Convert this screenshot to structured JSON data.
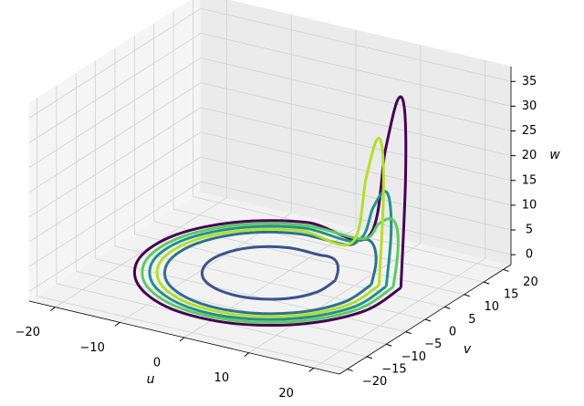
{
  "chart_data": {
    "type": "line3d",
    "xlabel": "u",
    "ylabel": "v",
    "zlabel": "w",
    "xlim": [
      -24,
      24
    ],
    "ylim": [
      -22,
      22
    ],
    "zlim": [
      -2,
      38
    ],
    "xticks": [
      {
        "value": -20,
        "label": "−20"
      },
      {
        "value": -10,
        "label": "−10"
      },
      0,
      10,
      20
    ],
    "yticks": [
      {
        "value": -20,
        "label": "−20"
      },
      {
        "value": -15,
        "label": "−15"
      },
      {
        "value": -10,
        "label": "−10"
      },
      {
        "value": -5,
        "label": "−5"
      },
      0,
      5,
      10,
      15,
      20
    ],
    "zticks": [
      0,
      5,
      10,
      15,
      20,
      25,
      30,
      35
    ],
    "grid": true,
    "series": [
      {
        "color": "#440154",
        "x": [
          17.4,
          17.4,
          12.7,
          4.7,
          -4.7,
          -12.7,
          -17.4,
          -17.4,
          -12.7,
          -4.7,
          4.7,
          8.2,
          11.3,
          14.0,
          16.0,
          17.4
        ],
        "y": [
          4.7,
          -4.7,
          -12.7,
          -17.4,
          -17.4,
          -12.7,
          -4.7,
          4.7,
          12.7,
          17.4,
          17.4,
          16.0,
          14.0,
          11.3,
          8.2,
          4.7
        ],
        "z": [
          0,
          0,
          0,
          0,
          0,
          0,
          0,
          0,
          0,
          0,
          0,
          19.4,
          31.4,
          31.4,
          19.4,
          0
        ]
      },
      {
        "color": "#3b528b",
        "x": [
          8.7,
          8.7,
          6.4,
          2.3,
          -2.3,
          -6.4,
          -8.7,
          -8.7,
          -6.4,
          -2.3,
          2.3,
          4.1,
          5.7,
          7.0,
          8.0,
          8.7
        ],
        "y": [
          2.3,
          -2.3,
          -6.4,
          -8.7,
          -8.7,
          -6.4,
          -2.3,
          2.3,
          6.4,
          8.7,
          8.7,
          8.0,
          7.0,
          5.7,
          4.1,
          2.3
        ],
        "z": [
          0,
          0,
          0,
          0,
          0,
          0,
          0,
          0,
          0,
          0,
          0,
          0.6,
          1,
          1,
          0.6,
          0
        ]
      },
      {
        "color": "#2c728e",
        "x": [
          13.5,
          13.5,
          9.9,
          3.6,
          -3.6,
          -9.9,
          -13.5,
          -13.5,
          -9.9,
          -3.6,
          3.6,
          6.4,
          8.8,
          10.9,
          12.5,
          13.5
        ],
        "y": [
          3.6,
          -3.6,
          -9.9,
          -13.5,
          -13.5,
          -9.9,
          -3.6,
          3.6,
          9.9,
          13.5,
          13.5,
          12.5,
          10.9,
          8.8,
          6.4,
          3.6
        ],
        "z": [
          0,
          0,
          0,
          0,
          0,
          0,
          0,
          0,
          0,
          0,
          0,
          2.4,
          3.8,
          3.8,
          2.4,
          0
        ]
      },
      {
        "color": "#21918c",
        "x": [
          15.5,
          15.5,
          11.3,
          4.1,
          -4.1,
          -11.3,
          -15.5,
          -15.5,
          -11.3,
          -4.1,
          4.1,
          7.3,
          10.1,
          12.4,
          14.3,
          15.5
        ],
        "y": [
          4.1,
          -4.1,
          -11.3,
          -15.5,
          -15.5,
          -11.3,
          -4.1,
          4.1,
          11.3,
          15.5,
          15.5,
          14.3,
          12.4,
          10.1,
          7.3,
          4.1
        ],
        "z": [
          0,
          0,
          0,
          0,
          0,
          0,
          0,
          0,
          0,
          0,
          0,
          8.2,
          13.3,
          13.3,
          8.2,
          0
        ]
      },
      {
        "color": "#5ec962",
        "x": [
          16.4,
          16.4,
          12.0,
          4.4,
          -4.4,
          -12.0,
          -16.4,
          -16.4,
          -12.0,
          -4.4,
          4.4,
          7.7,
          10.7,
          13.2,
          15.1,
          16.4
        ],
        "y": [
          4.4,
          -4.4,
          -12.0,
          -16.4,
          -16.4,
          -12.0,
          -4.4,
          4.4,
          12.0,
          16.4,
          16.4,
          15.1,
          13.2,
          10.7,
          7.7,
          4.4
        ],
        "z": [
          0,
          0,
          0,
          0,
          0,
          0,
          0,
          0,
          0,
          0,
          0,
          4.7,
          7.6,
          7.6,
          4.7,
          0
        ]
      },
      {
        "color": "#b5de2b",
        "x": [
          14.5,
          14.5,
          10.6,
          3.9,
          -3.9,
          -10.6,
          -14.5,
          -14.5,
          -10.6,
          -3.9,
          3.9,
          6.8,
          9.4,
          11.7,
          13.4,
          14.5
        ],
        "y": [
          3.9,
          -3.9,
          -10.6,
          -14.5,
          -14.5,
          -10.6,
          -3.9,
          3.9,
          10.6,
          14.5,
          14.5,
          13.4,
          11.7,
          9.4,
          6.8,
          3.9
        ],
        "z": [
          0,
          0,
          0,
          0,
          0,
          0,
          0,
          0,
          0,
          0,
          0,
          14.7,
          23.8,
          23.8,
          14.7,
          0
        ]
      }
    ]
  }
}
